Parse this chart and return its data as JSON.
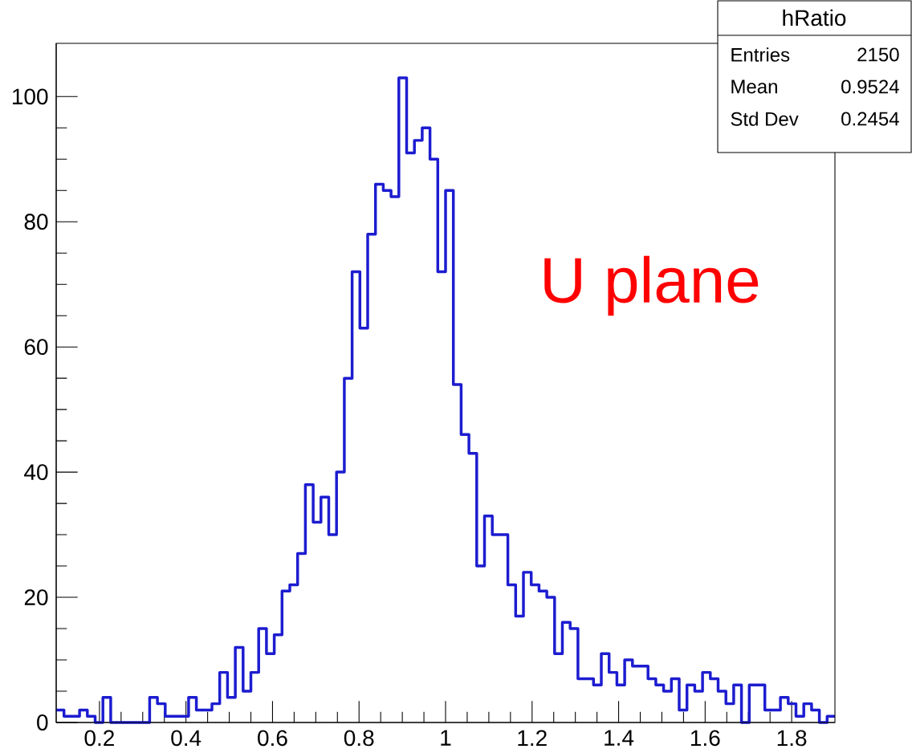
{
  "chart_data": {
    "type": "histogram",
    "color": "#1c1cd0",
    "bins": [
      0.1,
      0.118,
      0.136,
      0.154,
      0.172,
      0.19,
      0.208,
      0.226,
      0.244,
      0.262,
      0.28,
      0.298,
      0.316,
      0.334,
      0.352,
      0.37,
      0.388,
      0.406,
      0.424,
      0.442,
      0.46,
      0.478,
      0.496,
      0.514,
      0.532,
      0.55,
      0.568,
      0.586,
      0.604,
      0.622,
      0.64,
      0.658,
      0.676,
      0.694,
      0.712,
      0.73,
      0.748,
      0.766,
      0.784,
      0.802,
      0.82,
      0.838,
      0.856,
      0.874,
      0.892,
      0.91,
      0.928,
      0.946,
      0.964,
      0.982,
      1.0,
      1.018,
      1.036,
      1.054,
      1.072,
      1.09,
      1.108,
      1.126,
      1.144,
      1.162,
      1.18,
      1.198,
      1.216,
      1.234,
      1.252,
      1.27,
      1.288,
      1.306,
      1.324,
      1.342,
      1.36,
      1.378,
      1.396,
      1.414,
      1.432,
      1.45,
      1.468,
      1.486,
      1.504,
      1.522,
      1.54,
      1.558,
      1.576,
      1.594,
      1.612,
      1.63,
      1.648,
      1.666,
      1.684,
      1.702,
      1.72,
      1.738,
      1.756,
      1.774,
      1.792,
      1.81,
      1.828,
      1.846,
      1.864,
      1.882,
      1.9
    ],
    "values": [
      2,
      1,
      1,
      2,
      1,
      0,
      4,
      0,
      0,
      0,
      0,
      0,
      4,
      3,
      1,
      1,
      1,
      4,
      2,
      2,
      3,
      8,
      4,
      12,
      5,
      8,
      15,
      11,
      14,
      21,
      22,
      27,
      38,
      32,
      36,
      30,
      40,
      55,
      72,
      63,
      78,
      86,
      85,
      84,
      103,
      91,
      93,
      95,
      90,
      72,
      85,
      54,
      46,
      43,
      25,
      33,
      30,
      30,
      22,
      17,
      24,
      22,
      21,
      20,
      11,
      16,
      15,
      7,
      7,
      6,
      11,
      8,
      6,
      10,
      9,
      9,
      7,
      6,
      5,
      7,
      2,
      6,
      5,
      8,
      7,
      5,
      3,
      6,
      0,
      6,
      6,
      2,
      2,
      4,
      3,
      1,
      3,
      2,
      0,
      1
    ],
    "xlim": [
      0.1,
      1.9
    ],
    "ylim": [
      0,
      108.5
    ],
    "xticks": [
      0.2,
      0.4,
      0.6,
      0.8,
      1,
      1.2,
      1.4,
      1.6,
      1.8
    ],
    "yticks": [
      0,
      20,
      40,
      60,
      80,
      100
    ],
    "grid": false,
    "annotations": [
      "U plane",
      "hRatio",
      "Entries",
      "2150",
      "Mean",
      "0.9524",
      "Std Dev",
      "0.2454"
    ]
  }
}
